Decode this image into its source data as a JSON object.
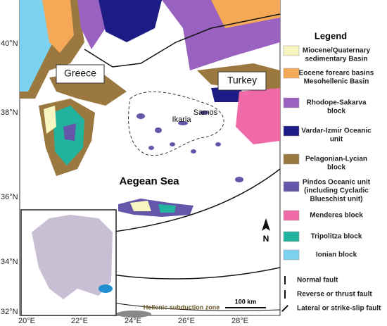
{
  "map": {
    "lat_labels": [
      "40°N",
      "38°N",
      "36°N",
      "34°N",
      "32°N"
    ],
    "lon_labels": [
      "20°E",
      "22°E",
      "24°E",
      "26°E",
      "28°E"
    ],
    "places": {
      "greece": "Greece",
      "turkey": "Turkey",
      "ikaria": "Ikaria",
      "samos": "Samos",
      "sea": "Aegean Sea",
      "subduction": "Hellenic subduction zone"
    },
    "scale": "100 km",
    "north": "N"
  },
  "legend": {
    "title": "Legend",
    "units": [
      {
        "lines": [
          "Miocene/Quaternary",
          "sedimentary Basin"
        ],
        "color": "#f8f6c0"
      },
      {
        "lines": [
          "Eocene forearc basins",
          "Mesohellenic Basin"
        ],
        "color": "#f5a855"
      },
      {
        "lines": [
          "Rhodope-Sakarva",
          "block"
        ],
        "color": "#9a62c0"
      },
      {
        "lines": [
          "Vardar-Izmir Oceanic",
          "unit"
        ],
        "color": "#1c1c84"
      },
      {
        "lines": [
          "Pelagonian-Lycian",
          "block"
        ],
        "color": "#9a7840"
      },
      {
        "lines": [
          "Pindos Oceanic unit",
          "(including Cycladic",
          "Blueschist unit)"
        ],
        "color": "#6656aa"
      },
      {
        "lines": [
          "Menderes block"
        ],
        "color": "#f06aa8"
      },
      {
        "lines": [
          "Tripolitza block"
        ],
        "color": "#22b39e"
      },
      {
        "lines": [
          "Ionian block"
        ],
        "color": "#7dd2f2"
      }
    ],
    "faults": [
      "Normal fault",
      "Reverse or thrust fault",
      "Lateral or strike-slip fault"
    ]
  }
}
